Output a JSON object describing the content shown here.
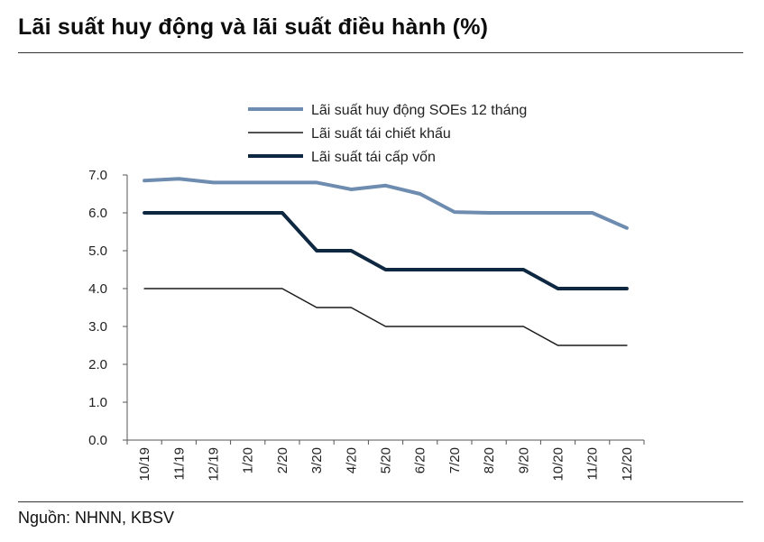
{
  "header": {
    "title": "Lãi suất huy động và lãi suất điều hành (%)"
  },
  "footer": {
    "source": "Nguồn: NHNN, KBSV"
  },
  "chart_data": {
    "type": "line",
    "categories": [
      "10/19",
      "11/19",
      "12/19",
      "1/20",
      "2/20",
      "3/20",
      "4/20",
      "5/20",
      "6/20",
      "7/20",
      "8/20",
      "9/20",
      "10/20",
      "11/20",
      "12/20"
    ],
    "ylim": [
      0,
      7
    ],
    "yticks": [
      "0.0",
      "1.0",
      "2.0",
      "3.0",
      "4.0",
      "5.0",
      "6.0",
      "7.0"
    ],
    "grid": false,
    "legend_position": "top",
    "series": [
      {
        "name": "Lãi suất huy động SOEs 12 tháng",
        "color": "#6e8cb0",
        "width": 4,
        "values": [
          6.85,
          6.9,
          6.8,
          6.8,
          6.8,
          6.8,
          6.62,
          6.72,
          6.5,
          6.02,
          6.0,
          6.0,
          6.0,
          6.0,
          5.6
        ]
      },
      {
        "name": "Lãi suất tái chiết khấu",
        "color": "#1a1a1a",
        "width": 1.5,
        "values": [
          4.0,
          4.0,
          4.0,
          4.0,
          4.0,
          3.5,
          3.5,
          3.0,
          3.0,
          3.0,
          3.0,
          3.0,
          2.5,
          2.5,
          2.5
        ]
      },
      {
        "name": "Lãi suất tái cấp vốn",
        "color": "#0f2842",
        "width": 4,
        "values": [
          6.0,
          6.0,
          6.0,
          6.0,
          6.0,
          5.0,
          5.0,
          4.5,
          4.5,
          4.5,
          4.5,
          4.5,
          4.0,
          4.0,
          4.0
        ]
      }
    ]
  }
}
